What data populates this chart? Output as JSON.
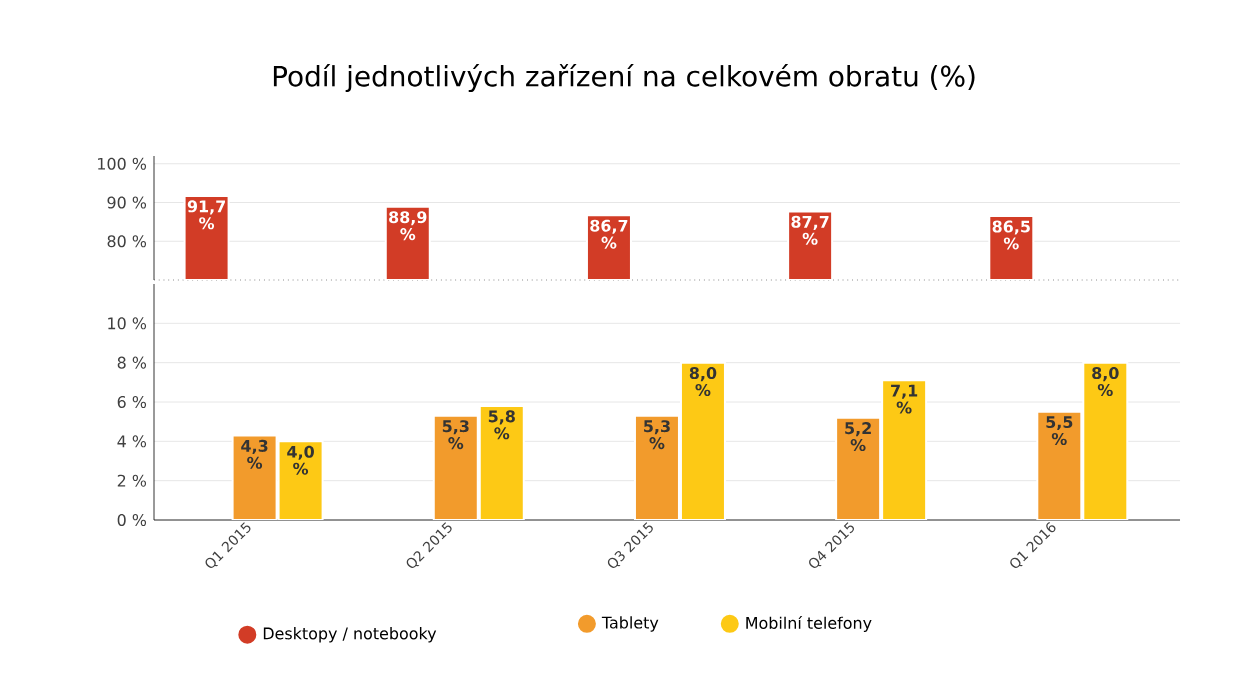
{
  "chart_data": [
    {
      "type": "bar",
      "title": "Podíl jednotlivých zařízení na celkovém obratu (%)",
      "categories": [
        null,
        null,
        null,
        null,
        null
      ],
      "series": [
        {
          "name": "Desktopy / notebooky",
          "color": "#d23c26",
          "values": [
            91.7,
            88.9,
            86.7,
            87.7,
            86.5
          ],
          "value_labels": [
            "91,7 %",
            "88,9 %",
            "86,7 %",
            "87,7 %",
            "86,5 %"
          ]
        }
      ],
      "ylim": [
        70,
        102
      ],
      "yticks": [
        {
          "value": 80,
          "label": "80 %"
        },
        {
          "value": 90,
          "label": "90 %"
        },
        {
          "value": 100,
          "label": "100 %"
        }
      ],
      "grid": "y",
      "legend": "bottom",
      "tick_labels": "y"
    },
    {
      "type": "bar",
      "categories": [
        "Q1 2015",
        "Q2 2015",
        "Q3 2015",
        "Q4 2015",
        "Q1 2016"
      ],
      "series": [
        {
          "name": "Tablety",
          "color": "#f29b2c",
          "values": [
            4.3,
            5.3,
            5.3,
            5.2,
            5.5
          ],
          "value_labels": [
            "4,3 %",
            "5,3 %",
            "5,3 %",
            "5,2 %",
            "5,5 %"
          ]
        },
        {
          "name": "Mobilní telefony",
          "color": "#fdc915",
          "values": [
            4.0,
            5.8,
            8.0,
            7.1,
            8.0
          ],
          "value_labels": [
            "4,0 %",
            "5,8 %",
            "8,0 %",
            "7,1 %",
            "8,0 %"
          ]
        }
      ],
      "ylim": [
        0,
        12
      ],
      "yticks": [
        {
          "value": 0,
          "label": "0 %"
        },
        {
          "value": 2,
          "label": "2 %"
        },
        {
          "value": 4,
          "label": "4 %"
        },
        {
          "value": 6,
          "label": "6 %"
        },
        {
          "value": 8,
          "label": "8 %"
        },
        {
          "value": 10,
          "label": "10 %"
        }
      ],
      "grid": "y",
      "legend": "bottom"
    }
  ]
}
